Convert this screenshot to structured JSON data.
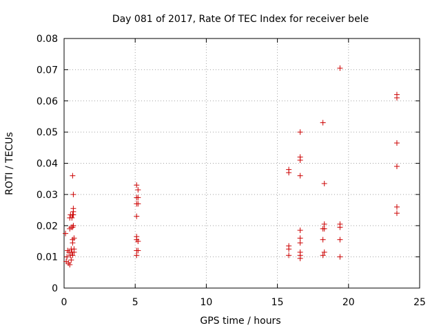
{
  "chart_data": {
    "type": "scatter",
    "title": "Day 081 of 2017, Rate Of TEC Index for receiver bele",
    "xlabel": "GPS time / hours",
    "ylabel": "ROTI / TECUs",
    "xlim": [
      0,
      25
    ],
    "ylim": [
      0,
      0.08
    ],
    "xticks": [
      "0",
      "5",
      "10",
      "15",
      "20",
      "25"
    ],
    "yticks": [
      "0",
      "0.01",
      "0.02",
      "0.03",
      "0.04",
      "0.05",
      "0.06",
      "0.07",
      "0.08"
    ],
    "grid": true,
    "marker": "plus",
    "color": "#cc0000",
    "series": [
      {
        "points": [
          [
            0.1,
            0.0175
          ],
          [
            0.15,
            0.0085
          ],
          [
            0.2,
            0.01
          ],
          [
            0.25,
            0.012
          ],
          [
            0.3,
            0.008
          ],
          [
            0.35,
            0.0115
          ],
          [
            0.4,
            0.0075
          ],
          [
            0.4,
            0.019
          ],
          [
            0.4,
            0.0225
          ],
          [
            0.45,
            0.0105
          ],
          [
            0.45,
            0.0235
          ],
          [
            0.5,
            0.009
          ],
          [
            0.5,
            0.0195
          ],
          [
            0.5,
            0.0125
          ],
          [
            0.55,
            0.0225
          ],
          [
            0.55,
            0.0115
          ],
          [
            0.6,
            0.0195
          ],
          [
            0.6,
            0.0235
          ],
          [
            0.6,
            0.0105
          ],
          [
            0.6,
            0.0155
          ],
          [
            0.6,
            0.0145
          ],
          [
            0.6,
            0.036
          ],
          [
            0.65,
            0.03
          ],
          [
            0.65,
            0.0255
          ],
          [
            0.65,
            0.0245
          ],
          [
            0.65,
            0.0235
          ],
          [
            0.65,
            0.02
          ],
          [
            0.7,
            0.0125
          ],
          [
            0.7,
            0.0115
          ],
          [
            0.7,
            0.016
          ],
          [
            5.1,
            0.033
          ],
          [
            5.1,
            0.029
          ],
          [
            5.1,
            0.027
          ],
          [
            5.1,
            0.023
          ],
          [
            5.1,
            0.0165
          ],
          [
            5.1,
            0.0155
          ],
          [
            5.1,
            0.012
          ],
          [
            5.1,
            0.0105
          ],
          [
            5.2,
            0.0315
          ],
          [
            5.2,
            0.029
          ],
          [
            5.2,
            0.027
          ],
          [
            5.2,
            0.015
          ],
          [
            5.2,
            0.012
          ],
          [
            15.8,
            0.038
          ],
          [
            15.8,
            0.037
          ],
          [
            15.8,
            0.0135
          ],
          [
            15.8,
            0.0125
          ],
          [
            15.8,
            0.0105
          ],
          [
            16.6,
            0.05
          ],
          [
            16.6,
            0.042
          ],
          [
            16.6,
            0.041
          ],
          [
            16.6,
            0.036
          ],
          [
            16.6,
            0.0185
          ],
          [
            16.6,
            0.016
          ],
          [
            16.6,
            0.0145
          ],
          [
            16.6,
            0.0115
          ],
          [
            16.6,
            0.0105
          ],
          [
            16.6,
            0.0095
          ],
          [
            18.2,
            0.053
          ],
          [
            18.2,
            0.019
          ],
          [
            18.2,
            0.0155
          ],
          [
            18.2,
            0.0105
          ],
          [
            18.3,
            0.0335
          ],
          [
            18.3,
            0.0205
          ],
          [
            18.3,
            0.019
          ],
          [
            18.3,
            0.0115
          ],
          [
            19.4,
            0.0705
          ],
          [
            19.4,
            0.0205
          ],
          [
            19.4,
            0.0195
          ],
          [
            19.4,
            0.0155
          ],
          [
            19.4,
            0.01
          ],
          [
            23.4,
            0.062
          ],
          [
            23.4,
            0.061
          ],
          [
            23.4,
            0.0465
          ],
          [
            23.4,
            0.039
          ],
          [
            23.4,
            0.026
          ],
          [
            23.4,
            0.024
          ]
        ]
      }
    ]
  }
}
